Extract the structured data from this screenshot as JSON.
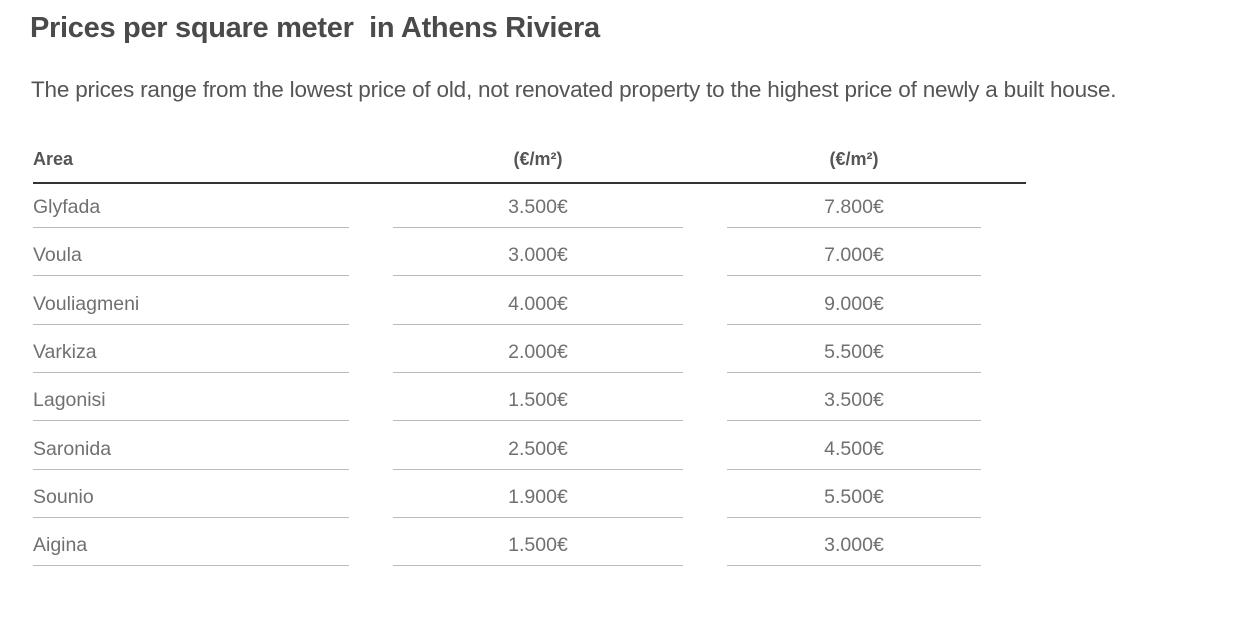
{
  "header": {
    "title": "Prices per square meter  in Athens Riviera",
    "subtitle": "The prices range from the lowest price of old, not renovated property to the highest price of newly a built house."
  },
  "table": {
    "columns": [
      "Area",
      "(€/m²)",
      "(€/m²)"
    ],
    "rows": [
      [
        "Glyfada",
        "3.500€",
        "7.800€"
      ],
      [
        "Voula",
        "3.000€",
        "7.000€"
      ],
      [
        "Vouliagmeni",
        "4.000€",
        "9.000€"
      ],
      [
        "Varkiza",
        "2.000€",
        "5.500€"
      ],
      [
        "Lagonisi",
        "1.500€",
        "3.500€"
      ],
      [
        "Saronida",
        "2.500€",
        "4.500€"
      ],
      [
        "Sounio",
        "1.900€",
        "5.500€"
      ],
      [
        "Aigina",
        "1.500€",
        "3.000€"
      ]
    ]
  }
}
